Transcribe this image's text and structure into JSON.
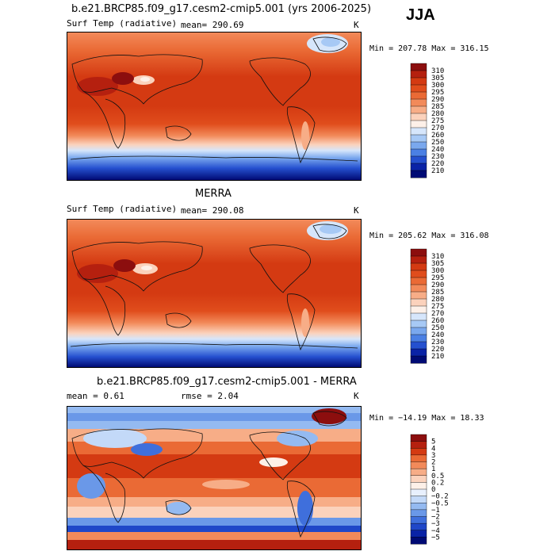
{
  "season": "JJA",
  "panels": [
    {
      "title": "b.e21.BRCP85.f09_g17.cesm2-cmip5.001 (yrs 2006-2025)",
      "variable": "Surf Temp (radiative)",
      "stat": "mean= 290.69",
      "units": "K",
      "minmax": "Min = 207.78 Max = 316.15",
      "colorbar_labels": [
        "310",
        "305",
        "300",
        "295",
        "290",
        "285",
        "280",
        "275",
        "270",
        "260",
        "250",
        "240",
        "230",
        "220",
        "210"
      ],
      "colorbar_colors": [
        "#8c0e0e",
        "#b5200f",
        "#d43a12",
        "#e04d1c",
        "#ea6a35",
        "#f28a5a",
        "#f7ad87",
        "#fbd2bc",
        "#fdf0e8",
        "#d6e6fb",
        "#a7c9f5",
        "#7aa8ee",
        "#4b80e4",
        "#2550cf",
        "#0a23a6",
        "#000b74"
      ]
    },
    {
      "title": "MERRA",
      "variable": "Surf Temp (radiative)",
      "stat": "mean= 290.08",
      "units": "K",
      "minmax": "Min = 205.62 Max = 316.08",
      "colorbar_labels": [
        "310",
        "305",
        "300",
        "295",
        "290",
        "285",
        "280",
        "275",
        "270",
        "260",
        "250",
        "240",
        "230",
        "220",
        "210"
      ],
      "colorbar_colors": [
        "#8c0e0e",
        "#b5200f",
        "#d43a12",
        "#e04d1c",
        "#ea6a35",
        "#f28a5a",
        "#f7ad87",
        "#fbd2bc",
        "#fdf0e8",
        "#d6e6fb",
        "#a7c9f5",
        "#7aa8ee",
        "#4b80e4",
        "#2550cf",
        "#0a23a6",
        "#000b74"
      ]
    },
    {
      "title": "b.e21.BRCP85.f09_g17.cesm2-cmip5.001 - MERRA",
      "stat_left": "mean =   0.61",
      "stat_mid": "rmse =   2.04",
      "units": "K",
      "minmax": "Min = −14.19 Max =  18.33",
      "colorbar_labels": [
        "5",
        "4",
        "3",
        "2",
        "1",
        "0.5",
        "0.2",
        "0",
        "−0.2",
        "−0.5",
        "−1",
        "−2",
        "−3",
        "−4",
        "−5"
      ],
      "colorbar_colors": [
        "#8c0e0e",
        "#b5200f",
        "#d43a12",
        "#ea6a35",
        "#f28a5a",
        "#f7ad87",
        "#fbd2bc",
        "#fdf0e8",
        "#e8f0fd",
        "#c3d9f8",
        "#94baf1",
        "#6a98e8",
        "#3f6fdc",
        "#1f47c8",
        "#0a23a6",
        "#000b74"
      ]
    }
  ]
}
